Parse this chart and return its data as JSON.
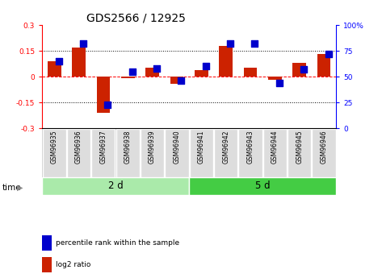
{
  "title": "GDS2566 / 12925",
  "samples": [
    "GSM96935",
    "GSM96936",
    "GSM96937",
    "GSM96938",
    "GSM96939",
    "GSM96940",
    "GSM96941",
    "GSM96942",
    "GSM96943",
    "GSM96944",
    "GSM96945",
    "GSM96946"
  ],
  "log2_ratio": [
    0.09,
    0.17,
    -0.21,
    -0.01,
    0.05,
    -0.04,
    0.04,
    0.18,
    0.05,
    -0.02,
    0.08,
    0.13
  ],
  "percentile_rank": [
    65,
    82,
    23,
    55,
    58,
    46,
    60,
    82,
    82,
    44,
    57,
    72
  ],
  "groups": [
    {
      "label": "2 d",
      "start": 0,
      "end": 6,
      "color": "#aaeaaa"
    },
    {
      "label": "5 d",
      "start": 6,
      "end": 12,
      "color": "#44cc44"
    }
  ],
  "group_label": "time",
  "ylim_left": [
    -0.3,
    0.3
  ],
  "ylim_right": [
    0,
    100
  ],
  "yticks_left": [
    -0.3,
    -0.15,
    0.0,
    0.15,
    0.3
  ],
  "yticks_left_labels": [
    "-0.3",
    "-0.15",
    "0",
    "0.15",
    "0.3"
  ],
  "yticks_right": [
    0,
    25,
    50,
    75,
    100
  ],
  "yticks_right_labels": [
    "0",
    "25",
    "50",
    "75",
    "100%"
  ],
  "hlines_dotted": [
    0.15,
    -0.15
  ],
  "bar_color": "#cc2200",
  "dot_color": "#0000cc",
  "bar_width": 0.55,
  "dot_size": 40,
  "legend_items": [
    {
      "label": "log2 ratio",
      "color": "#cc2200"
    },
    {
      "label": "percentile rank within the sample",
      "color": "#0000cc"
    }
  ],
  "title_fontsize": 10,
  "tick_fontsize": 6.5,
  "label_fontsize": 7.5,
  "sample_fontsize": 5.5,
  "group_fontsize": 8.5,
  "legend_fontsize": 6.5
}
